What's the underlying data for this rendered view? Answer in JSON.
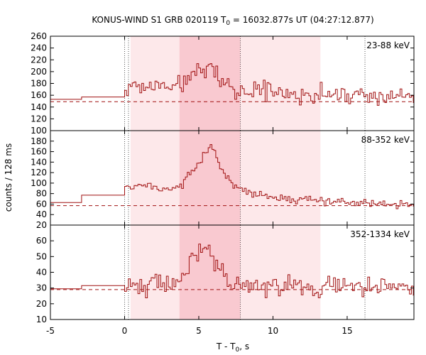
{
  "chart_data": {
    "type": "line",
    "title": "KONUS-WIND S1 GRB 020119 T0 = 16032.877s UT (04:27:12.877)",
    "title_main": "KONUS-WIND S1 GRB 020119 T",
    "title_sub": "0",
    "title_rest": " = 16032.877s UT (04:27:12.877)",
    "xlabel": "T - T0, s",
    "xlabel_main": "T - T",
    "xlabel_sub": "0",
    "xlabel_rest": ", s",
    "ylabel": "counts / 128 ms",
    "xlim": [
      -5,
      19.5
    ],
    "x_ticks": [
      "-5",
      "0",
      "5",
      "10",
      "15"
    ],
    "x_tick_values": [
      -5,
      0,
      5,
      10,
      15
    ],
    "shaded_intervals": [
      {
        "x": [
          0.4,
          13.2
        ],
        "shade": "light"
      },
      {
        "x": [
          3.7,
          7.8
        ],
        "shade": "dark"
      }
    ],
    "vertical_dotted_lines": [
      0.0,
      0.26,
      7.8,
      16.2
    ],
    "colors": {
      "data": "#a01010",
      "shade_light": "#fde8ea",
      "shade_dark": "#f9c9d0",
      "dotted": "#555555"
    },
    "panels": [
      {
        "band": "23-88 keV",
        "ylim": [
          100,
          260
        ],
        "y_ticks": [
          100,
          120,
          140,
          160,
          180,
          200,
          220,
          240,
          260
        ],
        "y_tick_labels": [
          "100",
          "120",
          "140",
          "160",
          "180",
          "200",
          "220",
          "240",
          "260"
        ],
        "background": 149,
        "pre_trigger_steps": [
          [
            -5,
            153
          ],
          [
            -2.9,
            157
          ]
        ],
        "profile": [
          [
            0,
            172
          ],
          [
            2,
            170
          ],
          [
            3.5,
            178
          ],
          [
            4.3,
            190
          ],
          [
            5.2,
            205
          ],
          [
            5.8,
            212
          ],
          [
            6.5,
            185
          ],
          [
            7.8,
            165
          ],
          [
            10,
            168
          ],
          [
            13,
            163
          ],
          [
            19.5,
            158
          ]
        ],
        "noise": 11
      },
      {
        "band": "88-352 keV",
        "ylim": [
          20,
          200
        ],
        "y_ticks": [
          20,
          40,
          60,
          80,
          100,
          120,
          140,
          160,
          180
        ],
        "y_tick_labels": [
          "20",
          "40",
          "60",
          "80",
          "100",
          "120",
          "140",
          "160",
          "180"
        ],
        "background": 57,
        "pre_trigger_steps": [
          [
            -5,
            63
          ],
          [
            -2.9,
            77
          ]
        ],
        "profile": [
          [
            0,
            95
          ],
          [
            1.5,
            98
          ],
          [
            3,
            88
          ],
          [
            4,
            100
          ],
          [
            4.8,
            130
          ],
          [
            5.5,
            160
          ],
          [
            5.9,
            175
          ],
          [
            6.5,
            130
          ],
          [
            7.3,
            95
          ],
          [
            8.5,
            80
          ],
          [
            11,
            70
          ],
          [
            15,
            65
          ],
          [
            19.5,
            58
          ]
        ],
        "noise": 6
      },
      {
        "band": "352-1334 keV",
        "ylim": [
          10,
          70
        ],
        "y_ticks": [
          10,
          20,
          30,
          40,
          50,
          60
        ],
        "y_tick_labels": [
          "10",
          "20",
          "30",
          "40",
          "50",
          "60"
        ],
        "background": 29,
        "pre_trigger_steps": [
          [
            -5,
            29.5
          ],
          [
            -2.9,
            31.5
          ]
        ],
        "profile": [
          [
            0,
            32
          ],
          [
            3,
            31
          ],
          [
            4.3,
            40
          ],
          [
            4.8,
            50
          ],
          [
            5.6,
            52
          ],
          [
            6.4,
            42
          ],
          [
            7.5,
            33
          ],
          [
            10,
            31
          ],
          [
            19.5,
            30
          ]
        ],
        "noise": 5
      }
    ]
  }
}
